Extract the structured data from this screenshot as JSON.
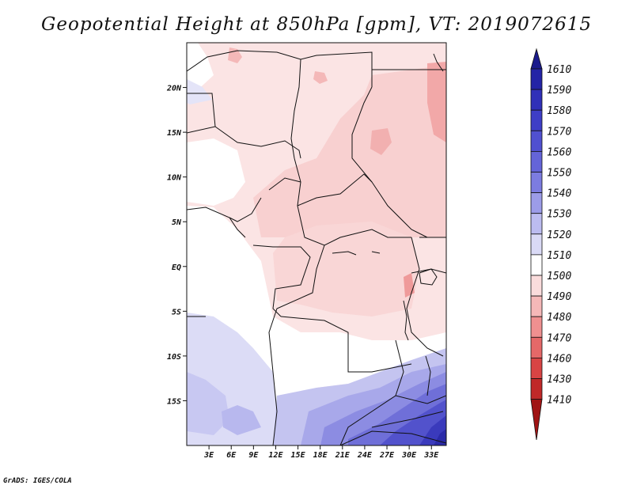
{
  "title": "Geopotential Height at 850hPa [gpm], VT: 2019072615",
  "credit": "GrADS: IGES/COLA",
  "chart_data": {
    "type": "heatmap",
    "variable": "Geopotential Height",
    "level": "850hPa",
    "units": "gpm",
    "valid_time": "2019072615",
    "region": "Central and Southern Africa",
    "xlim_lon": [
      0,
      35
    ],
    "ylim_lat": [
      -20,
      25
    ],
    "x_ticks": [
      {
        "value": 3,
        "label": "3E"
      },
      {
        "value": 6,
        "label": "6E"
      },
      {
        "value": 9,
        "label": "9E"
      },
      {
        "value": 12,
        "label": "12E"
      },
      {
        "value": 15,
        "label": "15E"
      },
      {
        "value": 18,
        "label": "18E"
      },
      {
        "value": 21,
        "label": "21E"
      },
      {
        "value": 24,
        "label": "24E"
      },
      {
        "value": 27,
        "label": "27E"
      },
      {
        "value": 30,
        "label": "30E"
      },
      {
        "value": 33,
        "label": "33E"
      }
    ],
    "y_ticks": [
      {
        "value": 20,
        "label": "20N"
      },
      {
        "value": 15,
        "label": "15N"
      },
      {
        "value": 10,
        "label": "10N"
      },
      {
        "value": 5,
        "label": "5N"
      },
      {
        "value": 0,
        "label": "EQ"
      },
      {
        "value": -5,
        "label": "5S"
      },
      {
        "value": -10,
        "label": "10S"
      },
      {
        "value": -15,
        "label": "15S"
      }
    ],
    "colorbar": {
      "levels": [
        "1610",
        "1590",
        "1580",
        "1570",
        "1560",
        "1550",
        "1540",
        "1530",
        "1520",
        "1510",
        "1500",
        "1490",
        "1480",
        "1470",
        "1460",
        "1430",
        "1410"
      ],
      "colors": [
        "#1a1a8c",
        "#2424a6",
        "#3030b8",
        "#3e3ec6",
        "#5050d0",
        "#6464d8",
        "#7c7ce0",
        "#9c9ce8",
        "#bcbcf0",
        "#dadaf6",
        "#ffffff",
        "#fadcdc",
        "#f5b8b8",
        "#ef9090",
        "#e56868",
        "#d84444",
        "#c02828",
        "#a01414"
      ]
    },
    "fields": {
      "region_1500_1510": "pale pink band across the Sahel and central Africa",
      "region_1490_1500": "light pink over Chad, Sudan and the Congo basin",
      "region_1480_1490": "salmon over eastern Sudan",
      "region_1510_1520": "white along the Gulf of Guinea and Angola",
      "region_1520_1540": "lavender over southern Atlantic and Namibia",
      "region_1540_1600": "blue to dark blue over Zambia, Zimbabwe and Mozambique"
    }
  }
}
